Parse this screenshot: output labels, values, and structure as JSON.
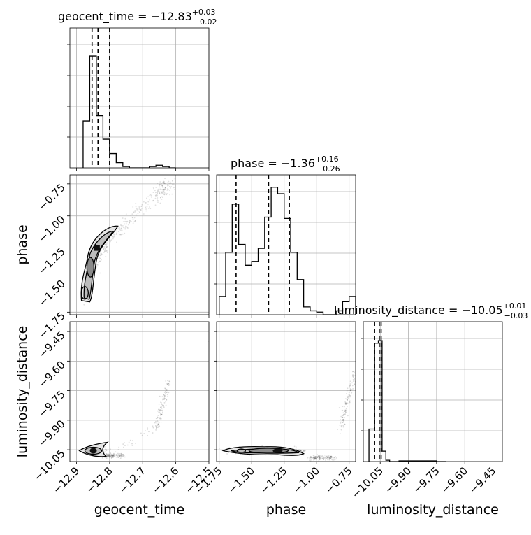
{
  "parameters": [
    "geocent_time",
    "phase",
    "luminosity_distance"
  ],
  "chart_data": {
    "type": "corner",
    "grid": true,
    "marginals": [
      {
        "parameter": "geocent_time",
        "title_main": "geocent_time = −12.83",
        "title_plus": "+0.03",
        "title_minus": "−0.02",
        "range": [
          -12.92,
          -12.5
        ],
        "bin_edges": [
          -12.88,
          -12.86,
          -12.84,
          -12.82,
          -12.8,
          -12.78,
          -12.76,
          -12.74,
          -12.72,
          -12.7,
          -12.68,
          -12.66,
          -12.64,
          -12.62,
          -12.6
        ],
        "counts": [
          0.36,
          0.86,
          0.4,
          0.22,
          0.11,
          0.04,
          0.01,
          0,
          0,
          0,
          0.01,
          0.02,
          0.01,
          0
        ],
        "quantiles": [
          -12.853,
          -12.835,
          -12.8
        ]
      },
      {
        "parameter": "phase",
        "title_main": "phase = −1.36",
        "title_plus": "+0.16",
        "title_minus": "−0.26",
        "range": [
          -1.75,
          -0.7
        ],
        "bin_edges": [
          -1.75,
          -1.7,
          -1.65,
          -1.6,
          -1.55,
          -1.5,
          -1.45,
          -1.4,
          -1.35,
          -1.3,
          -1.25,
          -1.2,
          -1.15,
          -1.1,
          -1.05,
          -1.0,
          -0.95,
          -0.9,
          -0.85,
          -0.8,
          -0.75,
          -0.7
        ],
        "counts": [
          0.14,
          0.48,
          0.85,
          0.54,
          0.38,
          0.41,
          0.51,
          0.75,
          0.98,
          0.93,
          0.74,
          0.48,
          0.27,
          0.06,
          0.03,
          0.02,
          0,
          0,
          0.03,
          0.1,
          0.14
        ],
        "quantiles": [
          -1.62,
          -1.37,
          -1.21
        ]
      },
      {
        "parameter": "luminosity_distance",
        "title_main": "luminosity_distance = −10.05",
        "title_plus": "+0.01",
        "title_minus": "−0.03",
        "range": [
          -10.15,
          -9.4
        ],
        "bin_edges": [
          -10.11,
          -10.08,
          -10.06,
          -10.04,
          -10.02,
          -10.0,
          -9.97,
          -9.95,
          -9.9,
          -9.85,
          -9.8,
          -9.75,
          -9.7
        ],
        "counts": [
          0.25,
          0.91,
          0.93,
          0.08,
          0.01,
          0,
          0,
          0.005,
          0.005,
          0.005,
          0.005,
          0
        ],
        "quantiles": [
          -10.08,
          -10.055,
          -10.045
        ]
      }
    ],
    "ticks": {
      "geocent_time": [
        -12.9,
        -12.8,
        -12.7,
        -12.6,
        -12.5
      ],
      "phase": [
        -1.75,
        -1.5,
        -1.25,
        -1.0,
        -0.75
      ],
      "luminosity_distance": [
        -10.05,
        -9.9,
        -9.75,
        -9.6,
        -9.45
      ]
    },
    "tick_labels": {
      "geocent_time": [
        "−12.9",
        "−12.8",
        "−12.7",
        "−12.6",
        "−12.5"
      ],
      "phase": [
        "−1.75",
        "−1.50",
        "−1.25",
        "−1.00",
        "−0.75"
      ],
      "luminosity_distance": [
        "−10.05",
        "−9.90",
        "−9.75",
        "−9.60",
        "−9.45"
      ]
    },
    "axis_labels": {
      "geocent_time": "geocent_time",
      "phase": "phase",
      "luminosity_distance": "luminosity_distance"
    }
  }
}
